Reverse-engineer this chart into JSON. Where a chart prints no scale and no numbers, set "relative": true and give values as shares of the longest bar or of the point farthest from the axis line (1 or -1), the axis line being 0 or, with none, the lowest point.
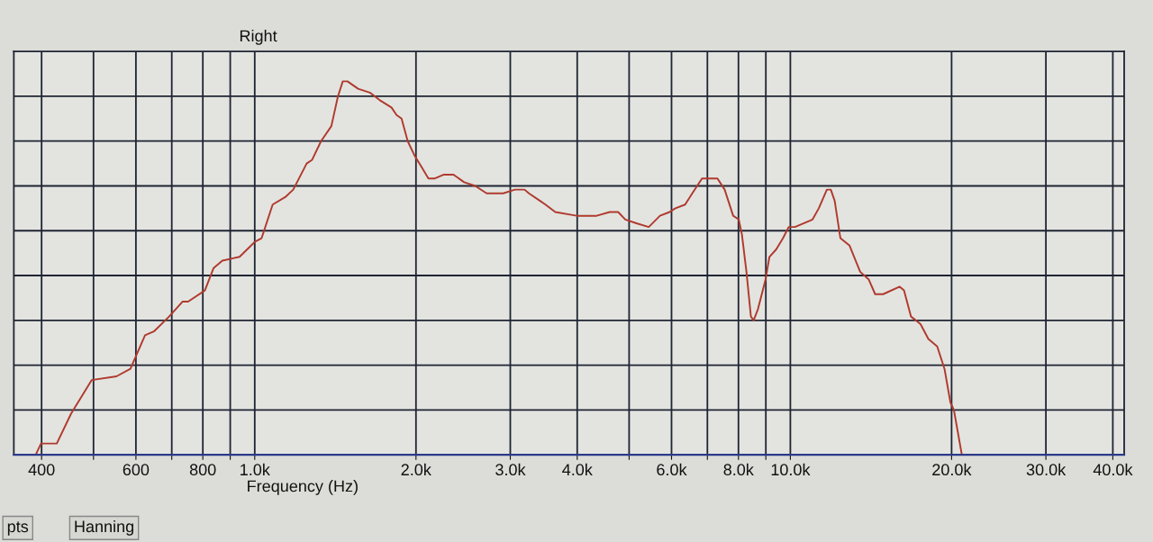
{
  "chart_data": {
    "type": "line",
    "title": "Right",
    "xlabel": "Frequency (Hz)",
    "relative": true,
    "log": "x",
    "grid": true,
    "xlim": [
      355,
      42000
    ],
    "xticks": [
      400,
      {
        "value": 500,
        "label": null
      },
      600,
      {
        "value": 700,
        "label": null
      },
      800,
      {
        "value": 900,
        "label": null
      },
      {
        "value": 1000,
        "label": "1.0k"
      },
      {
        "value": 2000,
        "label": "2.0k"
      },
      {
        "value": 3000,
        "label": "3.0k"
      },
      {
        "value": 4000,
        "label": "4.0k"
      },
      {
        "value": 5000,
        "label": null
      },
      {
        "value": 6000,
        "label": "6.0k"
      },
      {
        "value": 7000,
        "label": null
      },
      {
        "value": 8000,
        "label": "8.0k"
      },
      {
        "value": 9000,
        "label": null
      },
      {
        "value": 10000,
        "label": "10.0k"
      },
      {
        "value": 20000,
        "label": "20.0k"
      },
      {
        "value": 30000,
        "label": "30.0k"
      },
      {
        "value": 40000,
        "label": "40.0k"
      }
    ],
    "x": [
      390,
      399,
      427,
      454,
      496,
      552,
      586,
      624,
      648,
      692,
      733,
      751,
      807,
      838,
      870,
      937,
      1000,
      1030,
      1080,
      1140,
      1180,
      1250,
      1280,
      1330,
      1390,
      1430,
      1460,
      1490,
      1560,
      1640,
      1710,
      1800,
      1840,
      1880,
      1930,
      1990,
      2050,
      2110,
      2170,
      2250,
      2350,
      2460,
      2580,
      2710,
      2910,
      3060,
      3190,
      3250,
      3410,
      3490,
      3640,
      3990,
      4190,
      4350,
      4600,
      4770,
      4920,
      5160,
      5440,
      5710,
      5950,
      6100,
      6360,
      6560,
      6840,
      6960,
      7310,
      7540,
      7820,
      8010,
      8120,
      8280,
      8440,
      8540,
      8700,
      8990,
      9140,
      9410,
      9690,
      9930,
      10200,
      11000,
      11300,
      11700,
      11900,
      12100,
      12400,
      12900,
      13500,
      14000,
      14400,
      14900,
      16000,
      16300,
      16800,
      17500,
      18100,
      18800,
      19400,
      19900,
      20200,
      20900
    ],
    "series": [
      {
        "color": "#b03a2e",
        "values": [
          0,
          0.03,
          0.03,
          0.11,
          0.2,
          0.21,
          0.23,
          0.32,
          0.33,
          0.37,
          0.41,
          0.41,
          0.44,
          0.5,
          0.52,
          0.53,
          0.57,
          0.58,
          0.67,
          0.69,
          0.71,
          0.78,
          0.79,
          0.84,
          0.88,
          0.96,
          1,
          1,
          0.98,
          0.97,
          0.95,
          0.93,
          0.91,
          0.9,
          0.84,
          0.8,
          0.77,
          0.74,
          0.74,
          0.75,
          0.75,
          0.73,
          0.72,
          0.7,
          0.7,
          0.71,
          0.71,
          0.7,
          0.68,
          0.67,
          0.65,
          0.64,
          0.64,
          0.64,
          0.65,
          0.65,
          0.63,
          0.62,
          0.61,
          0.64,
          0.65,
          0.66,
          0.67,
          0.7,
          0.74,
          0.74,
          0.74,
          0.71,
          0.64,
          0.63,
          0.59,
          0.49,
          0.37,
          0.36,
          0.39,
          0.47,
          0.53,
          0.55,
          0.58,
          0.61,
          0.61,
          0.63,
          0.66,
          0.71,
          0.71,
          0.68,
          0.58,
          0.56,
          0.49,
          0.47,
          0.43,
          0.43,
          0.45,
          0.44,
          0.37,
          0.35,
          0.31,
          0.29,
          0.23,
          0.14,
          0.12,
          0
        ]
      }
    ],
    "annotations": [
      "pts",
      "Hanning"
    ]
  }
}
